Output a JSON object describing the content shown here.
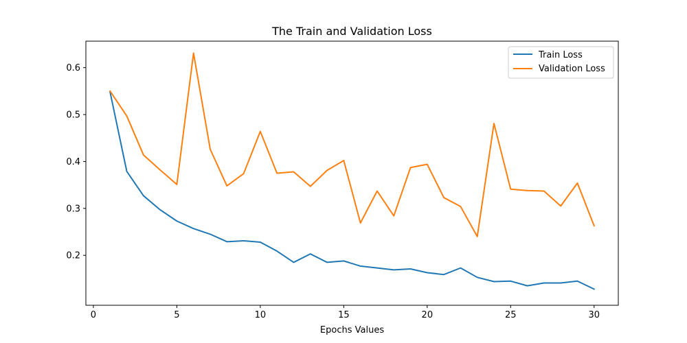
{
  "chart_data": {
    "type": "line",
    "title": "The Train and Validation Loss",
    "xlabel": "Epochs Values",
    "ylabel": "",
    "xlim": [
      -0.45,
      31.45
    ],
    "ylim": [
      0.0935,
      0.6565
    ],
    "x_ticks": [
      0,
      5,
      10,
      15,
      20,
      25,
      30
    ],
    "y_ticks": [
      0.2,
      0.3,
      0.4,
      0.5,
      0.6
    ],
    "x_tick_labels": [
      "0",
      "5",
      "10",
      "15",
      "20",
      "25",
      "30"
    ],
    "y_tick_labels": [
      "0.2",
      "0.3",
      "0.4",
      "0.5",
      "0.6"
    ],
    "grid": false,
    "legend_position": "top-right",
    "x": [
      1,
      2,
      3,
      4,
      5,
      6,
      7,
      8,
      9,
      10,
      11,
      12,
      13,
      14,
      15,
      16,
      17,
      18,
      19,
      20,
      21,
      22,
      23,
      24,
      25,
      26,
      27,
      28,
      29,
      30
    ],
    "series": [
      {
        "name": "Train Loss",
        "color": "#1f77b4",
        "values": [
          0.548,
          0.379,
          0.327,
          0.297,
          0.273,
          0.257,
          0.245,
          0.229,
          0.231,
          0.228,
          0.209,
          0.185,
          0.203,
          0.185,
          0.188,
          0.177,
          0.173,
          0.169,
          0.171,
          0.163,
          0.159,
          0.173,
          0.153,
          0.144,
          0.145,
          0.135,
          0.141,
          0.141,
          0.145,
          0.128
        ]
      },
      {
        "name": "Validation Loss",
        "color": "#ff7f0e",
        "values": [
          0.55,
          0.497,
          0.414,
          0.382,
          0.351,
          0.631,
          0.426,
          0.348,
          0.374,
          0.464,
          0.375,
          0.378,
          0.347,
          0.381,
          0.402,
          0.269,
          0.337,
          0.284,
          0.387,
          0.394,
          0.323,
          0.304,
          0.24,
          0.481,
          0.341,
          0.338,
          0.337,
          0.305,
          0.354,
          0.263
        ]
      }
    ]
  }
}
